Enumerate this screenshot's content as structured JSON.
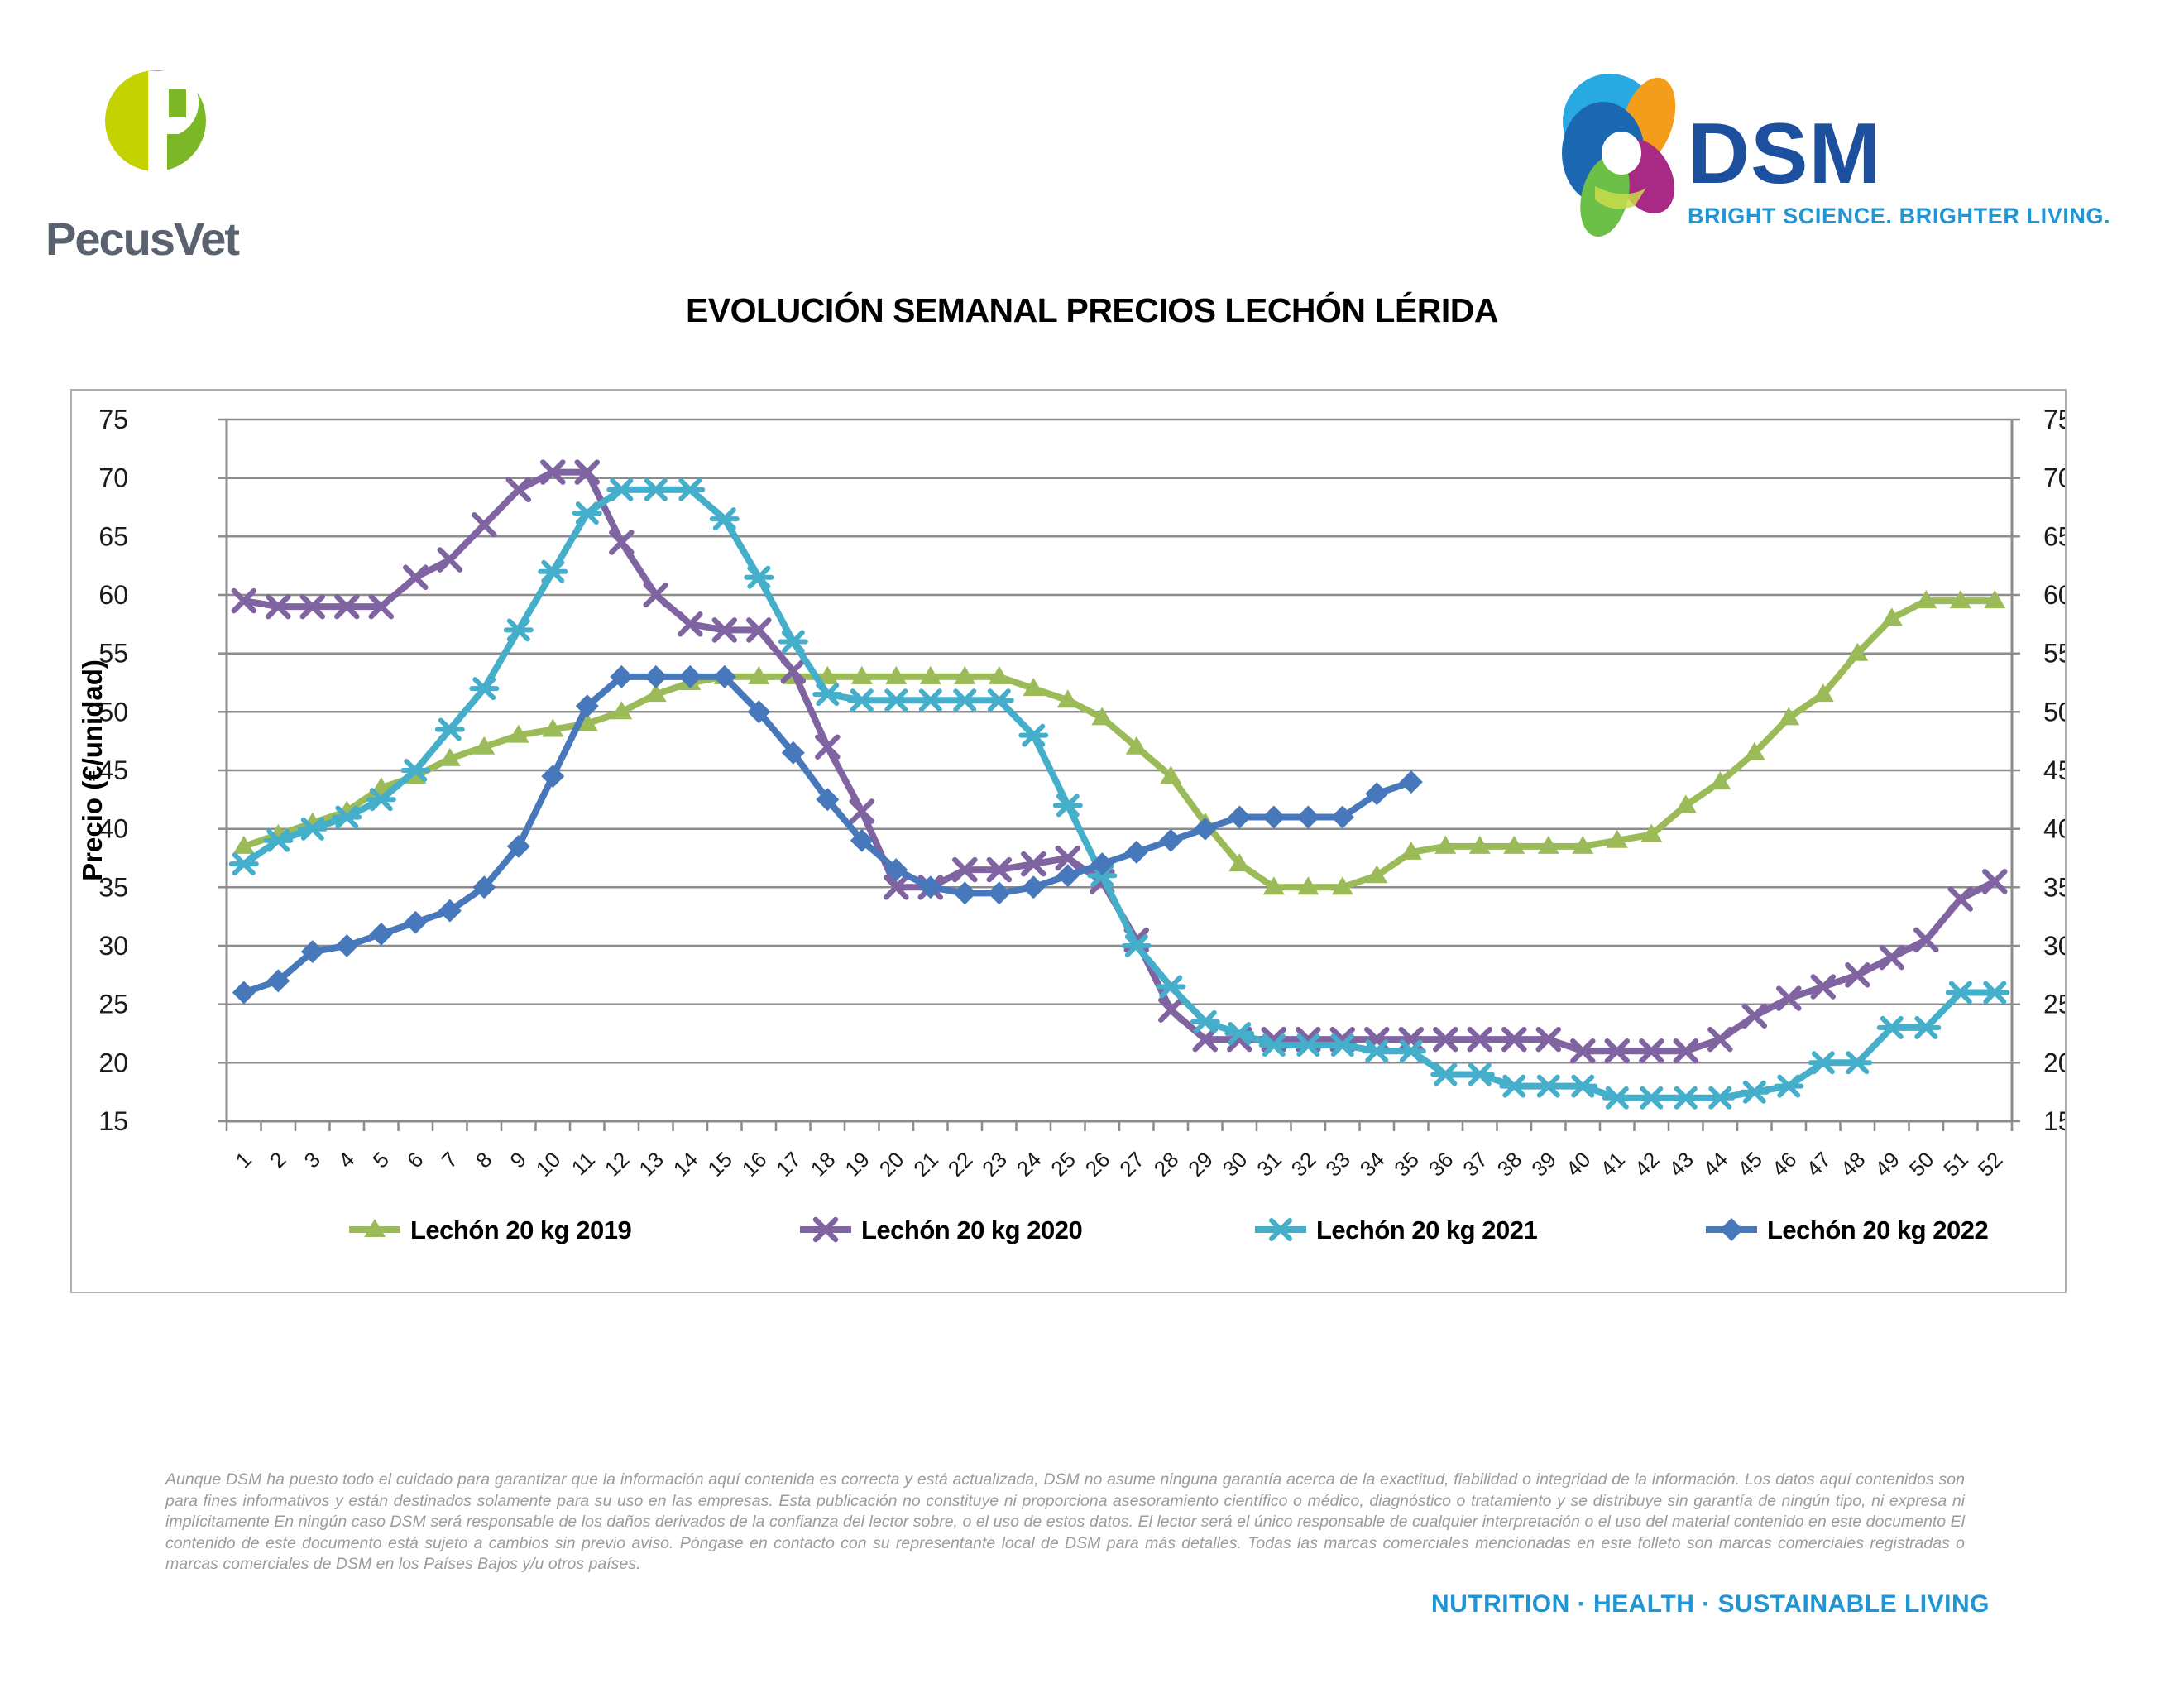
{
  "header": {
    "pecusvet_text": "PecusVet",
    "dsm_text": "DSM",
    "dsm_tagline": "BRIGHT SCIENCE. BRIGHTER LIVING."
  },
  "colors": {
    "dsm_blue": "#1C4F9E",
    "dsm_tagline_blue": "#2196D5",
    "footer_blue": "#2095D3",
    "pecusvet_green_light": "#C3D200",
    "pecusvet_green_dark": "#7CB728",
    "grid_gray": "#8c8c8c"
  },
  "chart_data": {
    "type": "line",
    "title": "EVOLUCIÓN SEMANAL PRECIOS LECHÓN LÉRIDA",
    "xlabel": "",
    "ylabel": "Precio (€/unidad)",
    "ylim": [
      15,
      75
    ],
    "y_ticks": [
      15,
      20,
      25,
      30,
      35,
      40,
      45,
      50,
      55,
      60,
      65,
      70,
      75
    ],
    "grid": true,
    "legend_position": "bottom",
    "categories": [
      1,
      2,
      3,
      4,
      5,
      6,
      7,
      8,
      9,
      10,
      11,
      12,
      13,
      14,
      15,
      16,
      17,
      18,
      19,
      20,
      21,
      22,
      23,
      24,
      25,
      26,
      27,
      28,
      29,
      30,
      31,
      32,
      33,
      34,
      35,
      36,
      37,
      38,
      39,
      40,
      41,
      42,
      43,
      44,
      45,
      46,
      47,
      48,
      49,
      50,
      51,
      52
    ],
    "series": [
      {
        "name": "Lechón 20 kg 2019",
        "color": "#9BBB59",
        "marker": "triangle",
        "values": [
          38.5,
          39.5,
          40.5,
          41.5,
          43.5,
          44.5,
          46,
          47,
          48,
          48.5,
          49,
          50,
          51.5,
          52.5,
          53,
          53,
          53,
          53,
          53,
          53,
          53,
          53,
          53,
          52,
          51,
          49.5,
          47,
          44.5,
          40.5,
          37,
          35,
          35,
          35,
          36,
          38,
          38.5,
          38.5,
          38.5,
          38.5,
          38.5,
          39,
          39.5,
          42,
          44,
          46.5,
          49.5,
          51.5,
          55,
          58,
          59.5,
          59.5,
          59.5
        ]
      },
      {
        "name": "Lechón 20 kg 2020",
        "color": "#8064A2",
        "marker": "x",
        "values": [
          59.5,
          59,
          59,
          59,
          59,
          61.5,
          63,
          66,
          69,
          70.5,
          70.5,
          64.5,
          60,
          57.5,
          57,
          57,
          53.5,
          47,
          41.5,
          35,
          35,
          36.5,
          36.5,
          37,
          37.5,
          35.5,
          30.5,
          24.5,
          22,
          22,
          22,
          22,
          22,
          22,
          22,
          22,
          22,
          22,
          22,
          21,
          21,
          21,
          21,
          22,
          24,
          25.5,
          26.5,
          27.5,
          29,
          30.5,
          34,
          35.5
        ]
      },
      {
        "name": "Lechón 20 kg 2021",
        "color": "#45AECB",
        "marker": "asterisk",
        "values": [
          37,
          39,
          40,
          41,
          42.5,
          45,
          48.5,
          52,
          57,
          62,
          67,
          69,
          69,
          69,
          66.5,
          61.5,
          56,
          51.5,
          51,
          51,
          51,
          51,
          51,
          48,
          42,
          36,
          30,
          26.5,
          23.5,
          22.5,
          21.5,
          21.5,
          21.5,
          21,
          21,
          19,
          19,
          18,
          18,
          18,
          17,
          17,
          17,
          17,
          17.5,
          18,
          20,
          20,
          23,
          23,
          26,
          26
        ]
      },
      {
        "name": "Lechón 20 kg 2022",
        "color": "#4878BC",
        "marker": "diamond",
        "values": [
          26,
          27,
          29.5,
          30,
          31,
          32,
          33,
          35,
          38.5,
          44.5,
          50.5,
          53,
          53,
          53,
          53,
          50,
          46.5,
          42.5,
          39,
          36.5,
          35,
          34.5,
          34.5,
          35,
          36,
          37,
          38,
          39,
          40,
          41,
          41,
          41,
          41,
          43,
          44
        ]
      }
    ]
  },
  "footer": {
    "disclaimer": "Aunque DSM ha puesto todo el cuidado para garantizar que la información aquí contenida es correcta y está actualizada, DSM no asume ninguna garantía acerca de la exactitud, fiabilidad o integridad de la información. Los datos aquí contenidos son para fines informativos y están destinados solamente para su uso en las empresas. Esta publicación no constituye ni proporciona asesoramiento científico o médico, diagnóstico o tratamiento y se distribuye sin garantía de ningún tipo, ni expresa ni implícitamente En ningún caso DSM será responsable de los daños derivados de la confianza del lector sobre, o el uso de estos datos. El lector será el único responsable de cualquier interpretación o el uso del material contenido en este documento El contenido de este documento está sujeto a cambios sin previo aviso. Póngase en contacto con su representante local de DSM para más detalles. Todas las marcas comerciales mencionadas en este folleto son marcas comerciales registradas o marcas comerciales de DSM en los Países Bajos y/u otros países.",
    "tagline": "NUTRITION  ·  HEALTH  ·  SUSTAINABLE LIVING"
  }
}
